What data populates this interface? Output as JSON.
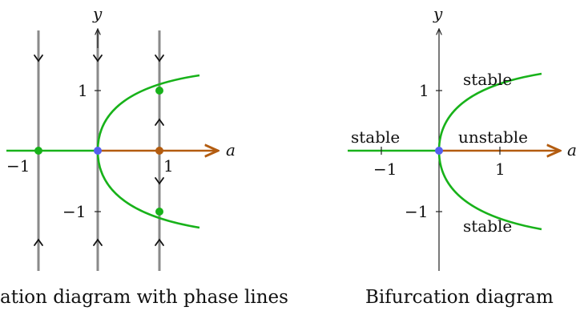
{
  "left_panel": {
    "caption": "ation diagram with phase lines",
    "axis_x_label": "a",
    "axis_y_label": "y",
    "tick_labels": [
      "−1",
      "1",
      "1",
      "−1"
    ]
  },
  "right_panel": {
    "caption": "Bifurcation diagram",
    "axis_x_label": "a",
    "axis_y_label": "y",
    "tick_labels": [
      "−1",
      "1",
      "1",
      "−1"
    ],
    "branch_labels": {
      "left": "stable",
      "upper": "stable",
      "right": "unstable",
      "lower": "stable"
    }
  },
  "colors": {
    "stable_branch": "#18b21a",
    "unstable_branch": "#b35c10",
    "bifurcation_point": "#5560f0",
    "phase_line": "#8a8a8a",
    "axis": "#222222"
  }
}
